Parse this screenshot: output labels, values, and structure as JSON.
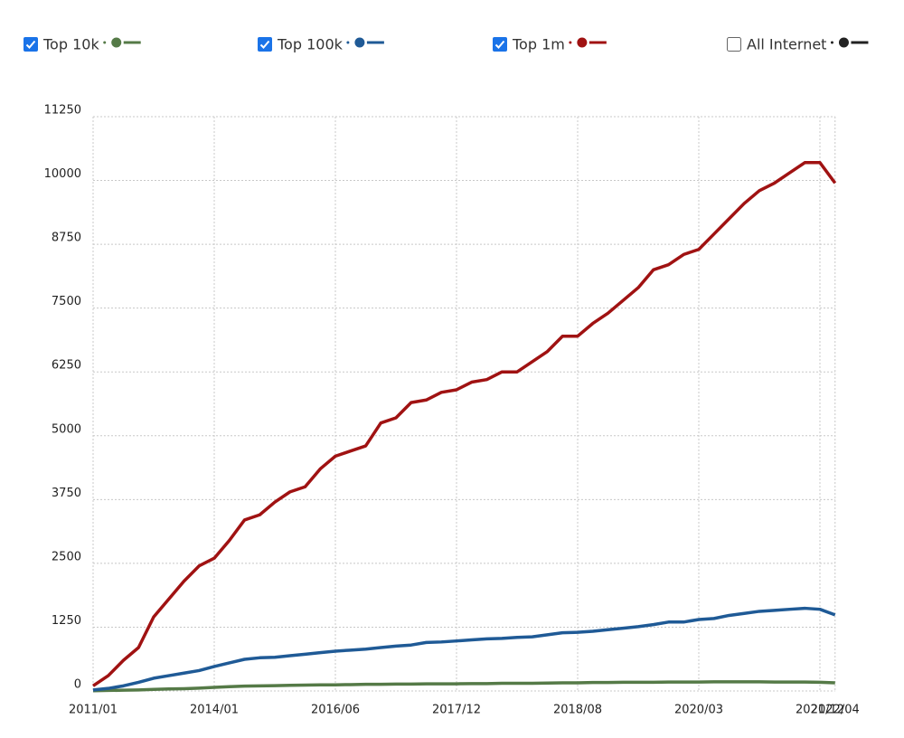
{
  "chart_data": {
    "type": "line",
    "categories": [
      "2011/01",
      null,
      null,
      null,
      null,
      null,
      null,
      null,
      "2014/01",
      null,
      null,
      null,
      null,
      null,
      null,
      null,
      "2016/06",
      null,
      null,
      null,
      null,
      null,
      null,
      null,
      "2017/12",
      null,
      null,
      null,
      null,
      null,
      null,
      null,
      "2018/08",
      null,
      null,
      null,
      null,
      null,
      null,
      null,
      "2020/03",
      null,
      null,
      null,
      null,
      null,
      null,
      null,
      "2021/12",
      "2022/04"
    ],
    "series": [
      {
        "name": "Top 10k",
        "color": "#557a47",
        "checked": true,
        "values": [
          5,
          10,
          15,
          20,
          30,
          40,
          45,
          55,
          70,
          85,
          95,
          100,
          105,
          110,
          115,
          120,
          120,
          125,
          130,
          130,
          135,
          135,
          140,
          140,
          140,
          145,
          145,
          150,
          150,
          150,
          155,
          160,
          160,
          165,
          165,
          170,
          170,
          170,
          175,
          175,
          175,
          180,
          180,
          180,
          180,
          175,
          175,
          175,
          170,
          160
        ]
      },
      {
        "name": "Top 100k",
        "color": "#1f5a96",
        "checked": true,
        "values": [
          20,
          50,
          100,
          170,
          250,
          300,
          350,
          400,
          480,
          550,
          620,
          650,
          660,
          690,
          720,
          750,
          780,
          800,
          820,
          850,
          880,
          900,
          950,
          960,
          980,
          1000,
          1020,
          1030,
          1050,
          1060,
          1100,
          1140,
          1150,
          1170,
          1200,
          1230,
          1260,
          1300,
          1350,
          1350,
          1400,
          1420,
          1480,
          1520,
          1560,
          1580,
          1600,
          1620,
          1600,
          1490
        ]
      },
      {
        "name": "Top 1m",
        "color": "#a01212",
        "checked": true,
        "values": [
          100,
          300,
          600,
          850,
          1450,
          1800,
          2150,
          2450,
          2600,
          2950,
          3350,
          3450,
          3700,
          3900,
          4000,
          4350,
          4600,
          4700,
          4800,
          5250,
          5350,
          5650,
          5700,
          5850,
          5900,
          6050,
          6100,
          6250,
          6250,
          6450,
          6650,
          6950,
          6950,
          7200,
          7400,
          7650,
          7900,
          8250,
          8350,
          8550,
          8650,
          8950,
          9250,
          9550,
          9800,
          9950,
          10150,
          10350,
          10350,
          9950
        ]
      },
      {
        "name": "All Internet",
        "color": "#222222",
        "checked": false
      }
    ],
    "ylim": [
      0,
      11250
    ],
    "yticks": [
      0,
      1250,
      2500,
      3750,
      5000,
      6250,
      7500,
      8750,
      10000,
      11250
    ],
    "grid": true
  }
}
